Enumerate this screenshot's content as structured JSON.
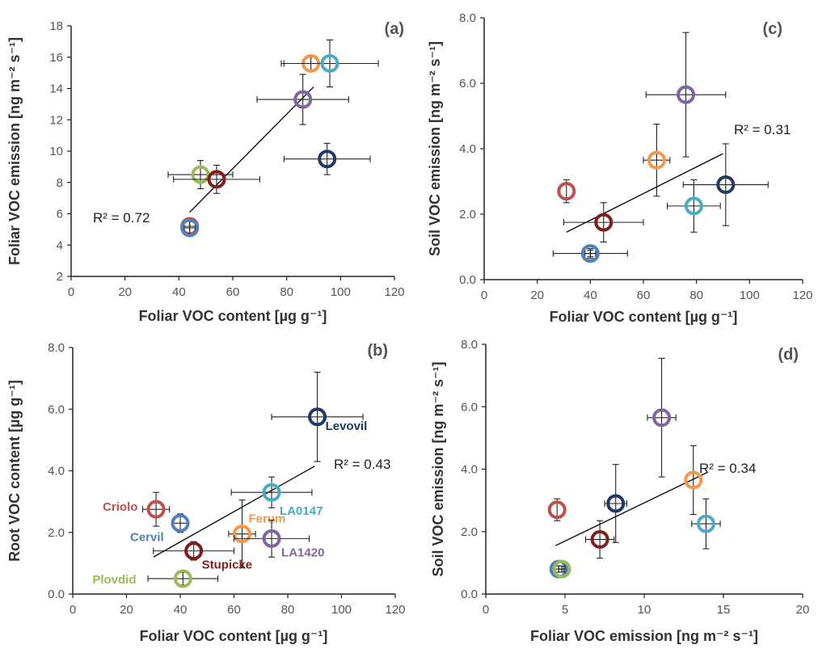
{
  "chart_data": [
    {
      "id": "a",
      "type": "scatter",
      "title": "",
      "panel_label": "(a)",
      "xlabel": "Foliar VOC content [µg g⁻¹]",
      "ylabel": "Foliar VOC emission [ng m⁻² s⁻¹]",
      "xlim": [
        0,
        120
      ],
      "ylim": [
        2,
        18
      ],
      "x_ticks": [
        0,
        20,
        40,
        60,
        80,
        100,
        120
      ],
      "y_ticks": [
        2,
        4,
        6,
        8,
        10,
        12,
        14,
        16,
        18
      ],
      "x_tick_labels": [
        "0",
        "20",
        "40",
        "60",
        "80",
        "100",
        "120"
      ],
      "y_tick_labels": [
        "2",
        "4",
        "6",
        "8",
        "10",
        "12",
        "14",
        "16",
        "18"
      ],
      "grid": false,
      "r2_text": "R² = 0.72",
      "trendline": {
        "x0": 44,
        "y0": 6.1,
        "x1": 90,
        "y1": 14.1
      },
      "points": [
        {
          "variety": "Criolo",
          "color": "#c0504d",
          "x": 44,
          "y": 5.2,
          "xerr": 3,
          "yerr": 0.5
        },
        {
          "variety": "Cervil",
          "color": "#4f81bd",
          "x": 44,
          "y": 5.1,
          "xerr": 2,
          "yerr": 0.4
        },
        {
          "variety": "Plovdid",
          "color": "#9bbb59",
          "x": 48,
          "y": 8.5,
          "xerr": 12,
          "yerr": 0.9
        },
        {
          "variety": "Stupicke",
          "color": "#7f1e1e",
          "x": 54,
          "y": 8.2,
          "xerr": 16,
          "yerr": 0.9
        },
        {
          "variety": "LA1420",
          "color": "#8064a2",
          "x": 86,
          "y": 13.3,
          "xerr": 17,
          "yerr": 1.6
        },
        {
          "variety": "Ferum",
          "color": "#f79646",
          "x": 89,
          "y": 15.6,
          "xerr": 10,
          "yerr": 0.5
        },
        {
          "variety": "LA0147",
          "color": "#4bacc6",
          "x": 96,
          "y": 15.6,
          "xerr": 18,
          "yerr": 1.5
        },
        {
          "variety": "Levovil",
          "color": "#1f3864",
          "x": 95,
          "y": 9.5,
          "xerr": 16,
          "yerr": 1.0
        }
      ]
    },
    {
      "id": "b",
      "type": "scatter",
      "title": "",
      "panel_label": "(b)",
      "xlabel": "Foliar VOC content [µg g⁻¹]",
      "ylabel": "Root VOC content [µg g⁻¹]",
      "xlim": [
        0,
        120
      ],
      "ylim": [
        0,
        8
      ],
      "x_ticks": [
        0,
        20,
        40,
        60,
        80,
        100,
        120
      ],
      "y_ticks": [
        0,
        2,
        4,
        6,
        8
      ],
      "x_tick_labels": [
        "0",
        "20",
        "40",
        "60",
        "80",
        "100",
        "120"
      ],
      "y_tick_labels": [
        "0.0",
        "2.0",
        "4.0",
        "6.0",
        "8.0"
      ],
      "grid": false,
      "r2_text": "R² = 0.43",
      "trendline": {
        "x0": 30,
        "y0": 1.2,
        "x1": 90,
        "y1": 4.15
      },
      "points": [
        {
          "variety": "Criolo",
          "color": "#c0504d",
          "x": 31,
          "y": 2.75,
          "xerr": 5,
          "yerr": 0.55,
          "label": "Criolo",
          "label_dx": -66,
          "label_dy": 2
        },
        {
          "variety": "Cervil",
          "color": "#4f81bd",
          "x": 40,
          "y": 2.3,
          "xerr": 3,
          "yerr": 0.3,
          "label": "Cervil",
          "label_dx": -62,
          "label_dy": 22
        },
        {
          "variety": "Plovdid",
          "color": "#9bbb59",
          "x": 41,
          "y": 0.5,
          "xerr": 13,
          "yerr": 0.2,
          "label": "Plovdid",
          "label_dx": -112,
          "label_dy": 6
        },
        {
          "variety": "Stupicke",
          "color": "#7f1e1e",
          "x": 45,
          "y": 1.4,
          "xerr": 15,
          "yerr": 0.3,
          "label": "Stupicke",
          "label_dx": 10,
          "label_dy": 22
        },
        {
          "variety": "Ferum",
          "color": "#f79646",
          "x": 63,
          "y": 1.95,
          "xerr": 5,
          "yerr": 1.1,
          "label": "Ferum",
          "label_dx": 8,
          "label_dy": -14
        },
        {
          "variety": "LA1420",
          "color": "#8064a2",
          "x": 74,
          "y": 1.8,
          "xerr": 14,
          "yerr": 0.6,
          "label": "LA1420",
          "label_dx": 12,
          "label_dy": 22
        },
        {
          "variety": "LA0147",
          "color": "#4bacc6",
          "x": 74,
          "y": 3.3,
          "xerr": 15,
          "yerr": 0.5,
          "label": "LA0147",
          "label_dx": 10,
          "label_dy": 28
        },
        {
          "variety": "Levovil",
          "color": "#1f3864",
          "x": 91,
          "y": 5.75,
          "xerr": 17,
          "yerr": 1.45,
          "label": "Levovil",
          "label_dx": 10,
          "label_dy": 16
        }
      ]
    },
    {
      "id": "c",
      "type": "scatter",
      "title": "",
      "panel_label": "(c)",
      "xlabel": "Foliar VOC content [µg g⁻¹]",
      "ylabel": "Soil VOC emission [ng m⁻² s⁻¹]",
      "xlim": [
        0,
        120
      ],
      "ylim": [
        0,
        8
      ],
      "x_ticks": [
        0,
        20,
        40,
        60,
        80,
        100,
        120
      ],
      "y_ticks": [
        0,
        2,
        4,
        6,
        8
      ],
      "x_tick_labels": [
        "0",
        "20",
        "40",
        "60",
        "80",
        "100",
        "120"
      ],
      "y_tick_labels": [
        "0.0",
        "2.0",
        "4.0",
        "6.0",
        "8.0"
      ],
      "grid": false,
      "r2_text": "R² = 0.31",
      "trendline": {
        "x0": 31,
        "y0": 1.45,
        "x1": 90,
        "y1": 3.85
      },
      "points": [
        {
          "variety": "Criolo",
          "color": "#c0504d",
          "x": 31,
          "y": 2.7,
          "xerr": 0,
          "yerr": 0.35
        },
        {
          "variety": "Plovdid",
          "color": "#9bbb59",
          "x": 40,
          "y": 0.8,
          "xerr": 14,
          "yerr": 0.15
        },
        {
          "variety": "Cervil",
          "color": "#4f81bd",
          "x": 40,
          "y": 0.8,
          "xerr": 2,
          "yerr": 0.1
        },
        {
          "variety": "Stupicke",
          "color": "#7f1e1e",
          "x": 45,
          "y": 1.75,
          "xerr": 15,
          "yerr": 0.6
        },
        {
          "variety": "Ferum",
          "color": "#f79646",
          "x": 65,
          "y": 3.65,
          "xerr": 5,
          "yerr": 1.1
        },
        {
          "variety": "LA1420",
          "color": "#8064a2",
          "x": 76,
          "y": 5.65,
          "xerr": 15,
          "yerr": 1.9
        },
        {
          "variety": "LA0147",
          "color": "#4bacc6",
          "x": 79,
          "y": 2.25,
          "xerr": 10,
          "yerr": 0.8
        },
        {
          "variety": "Levovil",
          "color": "#1f3864",
          "x": 91,
          "y": 2.9,
          "xerr": 16,
          "yerr": 1.25
        }
      ]
    },
    {
      "id": "d",
      "type": "scatter",
      "title": "",
      "panel_label": "(d)",
      "xlabel": "Foliar VOC emission [ng m⁻² s⁻¹]",
      "ylabel": "Soil VOC emission [ng m⁻² s⁻¹]",
      "xlim": [
        0,
        20
      ],
      "ylim": [
        0,
        8
      ],
      "x_ticks": [
        0,
        5,
        10,
        15,
        20
      ],
      "y_ticks": [
        0,
        2,
        4,
        6,
        8
      ],
      "x_tick_labels": [
        "0",
        "5",
        "10",
        "15",
        "20"
      ],
      "y_tick_labels": [
        "0.0",
        "2.0",
        "4.0",
        "6.0",
        "8.0"
      ],
      "grid": false,
      "r2_text": "R² = 0.34",
      "trendline": {
        "x0": 4.4,
        "y0": 1.55,
        "x1": 14,
        "y1": 3.9
      },
      "points": [
        {
          "variety": "Criolo",
          "color": "#c0504d",
          "x": 4.5,
          "y": 2.7,
          "xerr": 0,
          "yerr": 0.35
        },
        {
          "variety": "Cervil",
          "color": "#4f81bd",
          "x": 4.6,
          "y": 0.8,
          "xerr": 0.3,
          "yerr": 0.1
        },
        {
          "variety": "Plovdid",
          "color": "#9bbb59",
          "x": 4.8,
          "y": 0.8,
          "xerr": 0.2,
          "yerr": 0.1
        },
        {
          "variety": "Stupicke",
          "color": "#7f1e1e",
          "x": 7.2,
          "y": 1.75,
          "xerr": 0.9,
          "yerr": 0.6
        },
        {
          "variety": "Levovil",
          "color": "#1f3864",
          "x": 8.2,
          "y": 2.9,
          "xerr": 0.7,
          "yerr": 1.25
        },
        {
          "variety": "LA1420",
          "color": "#8064a2",
          "x": 11.1,
          "y": 5.65,
          "xerr": 0.9,
          "yerr": 1.9
        },
        {
          "variety": "Ferum",
          "color": "#f79646",
          "x": 13.1,
          "y": 3.65,
          "xerr": 0,
          "yerr": 1.1
        },
        {
          "variety": "LA0147",
          "color": "#4bacc6",
          "x": 13.9,
          "y": 2.25,
          "xerr": 0.9,
          "yerr": 0.8
        }
      ]
    }
  ]
}
